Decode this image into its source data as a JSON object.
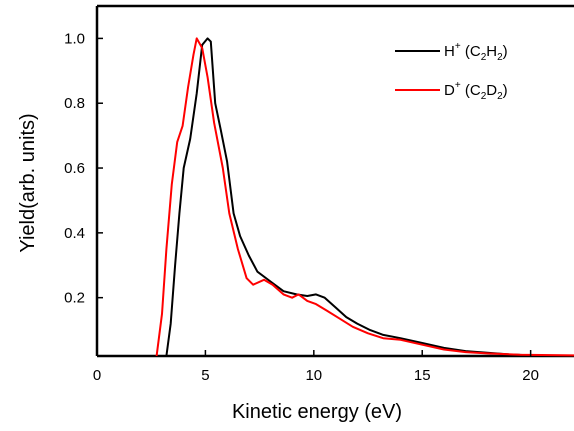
{
  "chart_data": {
    "type": "line",
    "xlabel": "Kinetic energy (eV)",
    "ylabel": "Yield(arb. units)",
    "xlim": [
      0,
      22
    ],
    "ylim": [
      0.02,
      1.1
    ],
    "x_ticks": [
      0,
      5,
      10,
      15,
      20
    ],
    "x_tick_labels": [
      "0",
      "5",
      "10",
      "15",
      "20"
    ],
    "y_ticks": [
      0.2,
      0.4,
      0.6,
      0.8,
      1.0
    ],
    "y_tick_labels": [
      "0.2",
      "0.4",
      "0.6",
      "0.8",
      "1.0"
    ],
    "grid": false,
    "legend_position": "top-right",
    "series": [
      {
        "name": "H+ (C2H2)",
        "legend": {
          "main": "H",
          "sup": "+",
          "open": " (C",
          "sub1": "2",
          "mid": "H",
          "sub2": "2",
          "close": ")"
        },
        "color": "#000000",
        "points": [
          [
            3.2,
            0.02
          ],
          [
            3.4,
            0.12
          ],
          [
            3.6,
            0.3
          ],
          [
            3.8,
            0.46
          ],
          [
            4.0,
            0.6
          ],
          [
            4.3,
            0.69
          ],
          [
            4.6,
            0.83
          ],
          [
            4.85,
            0.98
          ],
          [
            5.1,
            1.0
          ],
          [
            5.25,
            0.99
          ],
          [
            5.45,
            0.8
          ],
          [
            5.7,
            0.72
          ],
          [
            6.0,
            0.62
          ],
          [
            6.3,
            0.46
          ],
          [
            6.6,
            0.39
          ],
          [
            7.0,
            0.33
          ],
          [
            7.4,
            0.28
          ],
          [
            8.0,
            0.25
          ],
          [
            8.6,
            0.22
          ],
          [
            9.2,
            0.21
          ],
          [
            9.7,
            0.205
          ],
          [
            10.1,
            0.21
          ],
          [
            10.5,
            0.2
          ],
          [
            11.0,
            0.17
          ],
          [
            11.5,
            0.14
          ],
          [
            12.0,
            0.12
          ],
          [
            12.6,
            0.1
          ],
          [
            13.2,
            0.085
          ],
          [
            14.0,
            0.075
          ],
          [
            15.0,
            0.06
          ],
          [
            16.0,
            0.045
          ],
          [
            17.0,
            0.035
          ],
          [
            18.0,
            0.03
          ],
          [
            19.0,
            0.025
          ],
          [
            20.0,
            0.022
          ],
          [
            22.0,
            0.02
          ]
        ]
      },
      {
        "name": "D+ (C2D2)",
        "legend": {
          "main": "D",
          "sup": "+",
          "open": " (C",
          "sub1": "2",
          "mid": "D",
          "sub2": "2",
          "close": ")"
        },
        "color": "#ff0000",
        "points": [
          [
            2.75,
            0.02
          ],
          [
            3.0,
            0.15
          ],
          [
            3.2,
            0.35
          ],
          [
            3.45,
            0.55
          ],
          [
            3.7,
            0.68
          ],
          [
            3.95,
            0.73
          ],
          [
            4.2,
            0.85
          ],
          [
            4.45,
            0.95
          ],
          [
            4.6,
            1.0
          ],
          [
            4.85,
            0.97
          ],
          [
            5.1,
            0.88
          ],
          [
            5.4,
            0.74
          ],
          [
            5.8,
            0.6
          ],
          [
            6.1,
            0.46
          ],
          [
            6.5,
            0.35
          ],
          [
            6.9,
            0.26
          ],
          [
            7.2,
            0.24
          ],
          [
            7.7,
            0.255
          ],
          [
            8.1,
            0.24
          ],
          [
            8.6,
            0.21
          ],
          [
            9.0,
            0.2
          ],
          [
            9.3,
            0.21
          ],
          [
            9.7,
            0.19
          ],
          [
            10.1,
            0.18
          ],
          [
            10.6,
            0.16
          ],
          [
            11.2,
            0.135
          ],
          [
            11.8,
            0.11
          ],
          [
            12.5,
            0.09
          ],
          [
            13.2,
            0.075
          ],
          [
            14.0,
            0.07
          ],
          [
            15.0,
            0.055
          ],
          [
            16.0,
            0.04
          ],
          [
            17.0,
            0.032
          ],
          [
            18.0,
            0.028
          ],
          [
            19.5,
            0.024
          ],
          [
            22.0,
            0.022
          ]
        ]
      }
    ]
  }
}
